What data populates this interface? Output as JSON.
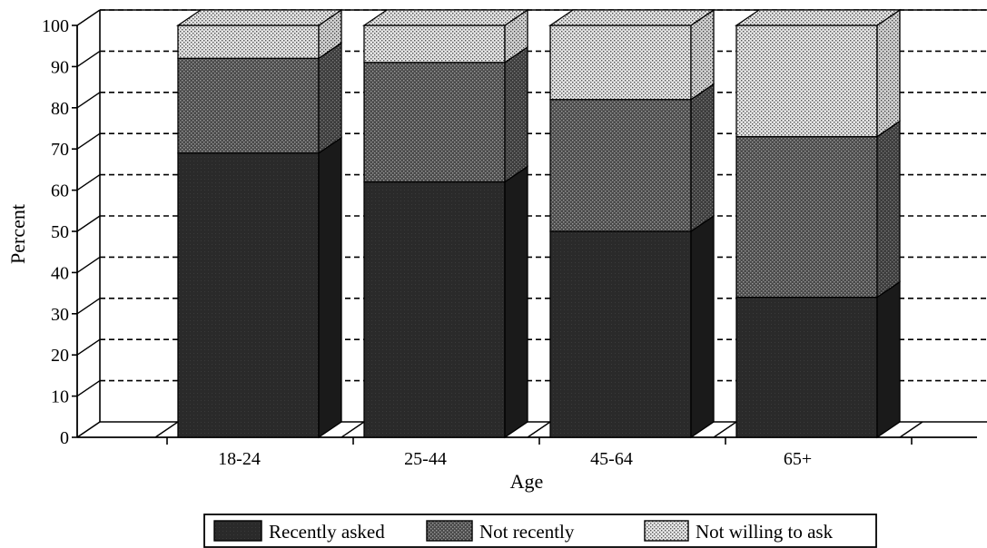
{
  "chart_data": {
    "type": "bar",
    "stacked": true,
    "style": "3d",
    "xlabel": "Age",
    "ylabel": "Percent",
    "ylim": [
      0,
      100
    ],
    "yticks": [
      0,
      10,
      20,
      30,
      40,
      50,
      60,
      70,
      80,
      90,
      100
    ],
    "grid": "dashed-horizontal",
    "legend_position": "bottom",
    "categories": [
      "18-24",
      "25-44",
      "45-64",
      "65+"
    ],
    "series": [
      {
        "name": "Recently asked",
        "values": [
          69,
          62,
          50,
          34
        ],
        "pattern": "dark"
      },
      {
        "name": "Not recently",
        "values": [
          23,
          29,
          32,
          39
        ],
        "pattern": "medium-dots"
      },
      {
        "name": "Not willing to ask",
        "values": [
          8,
          9,
          18,
          27
        ],
        "pattern": "light-dots"
      }
    ]
  }
}
